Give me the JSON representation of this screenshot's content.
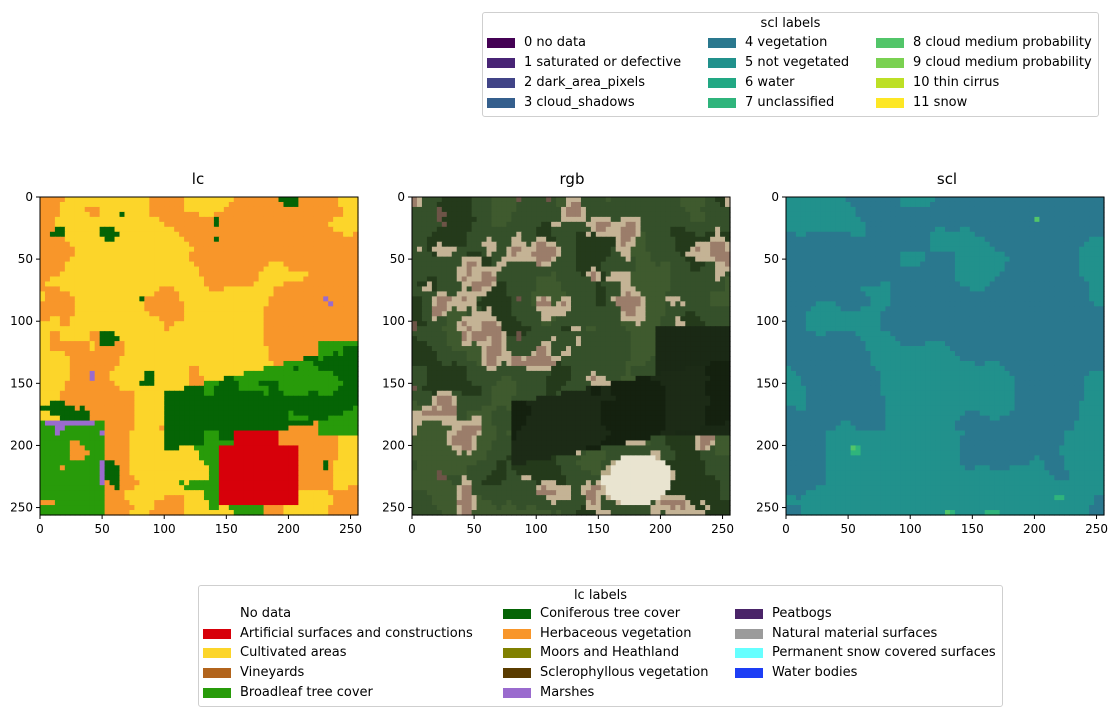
{
  "scl_legend": {
    "title": "scl labels",
    "items": [
      {
        "label": "0 no data",
        "color": "#440154"
      },
      {
        "label": "1 saturated or defective",
        "color": "#482475"
      },
      {
        "label": "2 dark_area_pixels",
        "color": "#414487"
      },
      {
        "label": "3 cloud_shadows",
        "color": "#355f8d"
      },
      {
        "label": "4 vegetation",
        "color": "#2a788e"
      },
      {
        "label": "5 not vegetated",
        "color": "#21918c"
      },
      {
        "label": "6 water",
        "color": "#22a884"
      },
      {
        "label": "7 unclassified",
        "color": "#2fb47c"
      },
      {
        "label": "8 cloud medium probability",
        "color": "#52c569"
      },
      {
        "label": "9 cloud medium probability",
        "color": "#7ad151"
      },
      {
        "label": "10 thin cirrus",
        "color": "#bddf26"
      },
      {
        "label": "11 snow",
        "color": "#fde725"
      }
    ]
  },
  "lc_legend": {
    "title": "lc labels",
    "items": [
      {
        "label": "No data",
        "color": "#ffffff"
      },
      {
        "label": "Artificial surfaces and constructions",
        "color": "#d7000a"
      },
      {
        "label": "Cultivated areas",
        "color": "#fcd52a"
      },
      {
        "label": "Vineyards",
        "color": "#b2641c"
      },
      {
        "label": "Broadleaf tree cover",
        "color": "#289b0a"
      },
      {
        "label": "Coniferous tree cover",
        "color": "#056405"
      },
      {
        "label": "Herbaceous vegetation",
        "color": "#f8962a"
      },
      {
        "label": "Moors and Heathland",
        "color": "#808000"
      },
      {
        "label": "Sclerophyllous vegetation",
        "color": "#5a3c00"
      },
      {
        "label": "Marshes",
        "color": "#9a6bce"
      },
      {
        "label": "Peatbogs",
        "color": "#4a2468"
      },
      {
        "label": "Natural material surfaces",
        "color": "#9b9b9b"
      },
      {
        "label": "Permanent snow covered surfaces",
        "color": "#66ffff"
      },
      {
        "label": "Water bodies",
        "color": "#1d3ef5"
      }
    ]
  },
  "chart_data": [
    {
      "type": "heatmap",
      "title": "lc",
      "xlim": [
        0,
        256
      ],
      "ylim": [
        256,
        0
      ],
      "xticks": [
        0,
        50,
        100,
        150,
        200,
        250
      ],
      "yticks": [
        0,
        50,
        100,
        150,
        200,
        250
      ],
      "dominant_classes": [
        "Cultivated areas",
        "Herbaceous vegetation",
        "Broadleaf tree cover",
        "Coniferous tree cover",
        "Artificial surfaces and constructions",
        "Marshes"
      ]
    },
    {
      "type": "heatmap",
      "title": "rgb",
      "xlim": [
        0,
        256
      ],
      "ylim": [
        256,
        0
      ],
      "xticks": [
        0,
        50,
        100,
        150,
        200,
        250
      ],
      "yticks": [
        0,
        50,
        100,
        150,
        200,
        250
      ]
    },
    {
      "type": "heatmap",
      "title": "scl",
      "xlim": [
        0,
        256
      ],
      "ylim": [
        256,
        0
      ],
      "xticks": [
        0,
        50,
        100,
        150,
        200,
        250
      ],
      "yticks": [
        0,
        50,
        100,
        150,
        200,
        250
      ],
      "dominant_classes": [
        "4 vegetation",
        "5 not vegetated"
      ]
    }
  ]
}
